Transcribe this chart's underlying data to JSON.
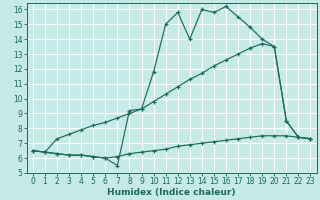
{
  "xlabel": "Humidex (Indice chaleur)",
  "bg_color": "#c6eae6",
  "grid_color": "#ffffff",
  "line_color": "#1a6b5a",
  "xlim": [
    -0.5,
    23.5
  ],
  "ylim": [
    5,
    16.4
  ],
  "xticks": [
    0,
    1,
    2,
    3,
    4,
    5,
    6,
    7,
    8,
    9,
    10,
    11,
    12,
    13,
    14,
    15,
    16,
    17,
    18,
    19,
    20,
    21,
    22,
    23
  ],
  "yticks": [
    5,
    6,
    7,
    8,
    9,
    10,
    11,
    12,
    13,
    14,
    15,
    16
  ],
  "line1_x": [
    0,
    1,
    2,
    3,
    4,
    5,
    6,
    7,
    8,
    9,
    10,
    11,
    12,
    13,
    14,
    15,
    16,
    17,
    18,
    19,
    20,
    21,
    22,
    23
  ],
  "line1_y": [
    6.5,
    6.4,
    6.3,
    6.2,
    6.2,
    6.1,
    6.0,
    5.5,
    9.2,
    9.3,
    11.8,
    15.0,
    15.8,
    14.0,
    16.0,
    15.8,
    16.2,
    15.5,
    14.8,
    14.0,
    13.5,
    8.5,
    7.4,
    7.3
  ],
  "line2_x": [
    0,
    1,
    2,
    3,
    4,
    5,
    6,
    7,
    8,
    9,
    10,
    11,
    12,
    13,
    14,
    15,
    16,
    17,
    18,
    19,
    20,
    21,
    22,
    23
  ],
  "line2_y": [
    6.5,
    6.4,
    7.3,
    7.6,
    7.9,
    8.2,
    8.4,
    8.7,
    9.0,
    9.3,
    9.8,
    10.3,
    10.8,
    11.3,
    11.7,
    12.2,
    12.6,
    13.0,
    13.4,
    13.7,
    13.5,
    8.5,
    7.4,
    7.3
  ],
  "line3_x": [
    0,
    1,
    2,
    3,
    4,
    5,
    6,
    7,
    8,
    9,
    10,
    11,
    12,
    13,
    14,
    15,
    16,
    17,
    18,
    19,
    20,
    21,
    22,
    23
  ],
  "line3_y": [
    6.5,
    6.4,
    6.3,
    6.2,
    6.2,
    6.1,
    6.0,
    6.1,
    6.3,
    6.4,
    6.5,
    6.6,
    6.8,
    6.9,
    7.0,
    7.1,
    7.2,
    7.3,
    7.4,
    7.5,
    7.5,
    7.5,
    7.4,
    7.3
  ],
  "tick_fontsize": 5.5,
  "label_fontsize": 6.5
}
